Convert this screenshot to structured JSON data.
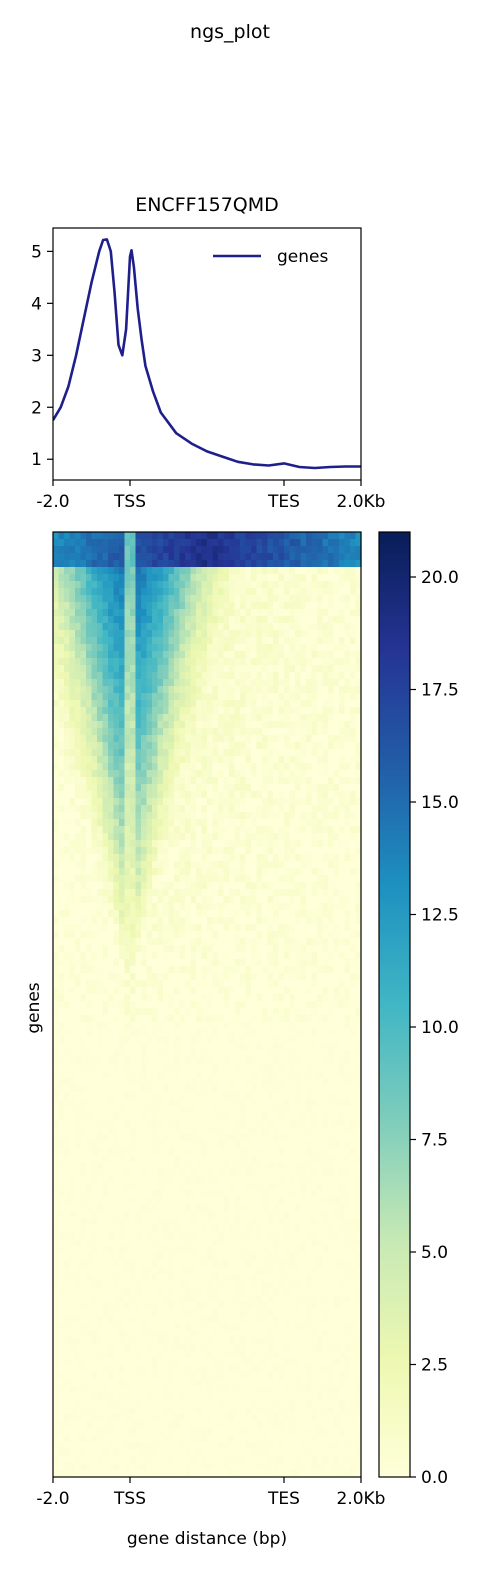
{
  "figure": {
    "suptitle": "ngs_plot"
  },
  "colors": {
    "line": "#1f1f8c",
    "axis": "#000000",
    "cmap": [
      "#ffffd9",
      "#edf8b1",
      "#c7e9b4",
      "#7fcdbb",
      "#41b6c4",
      "#1d91c0",
      "#225ea8",
      "#253494",
      "#081d58"
    ]
  },
  "chart_data": [
    {
      "type": "line",
      "title": "ENCFF157QMD",
      "x_tick_labels": [
        "-2.0",
        "TSS",
        "TES",
        "2.0Kb"
      ],
      "x_tick_positions": [
        0,
        1,
        3,
        4
      ],
      "xlim": [
        0,
        4
      ],
      "ylim": [
        0.6,
        5.45
      ],
      "y_ticks": [
        1,
        2,
        3,
        4,
        5
      ],
      "legend": "top-right",
      "grid": false,
      "series": [
        {
          "name": "genes",
          "x": [
            0,
            0.1,
            0.2,
            0.3,
            0.4,
            0.5,
            0.6,
            0.65,
            0.7,
            0.75,
            0.8,
            0.85,
            0.9,
            0.95,
            1.0,
            1.02,
            1.05,
            1.1,
            1.15,
            1.2,
            1.3,
            1.4,
            1.5,
            1.6,
            1.8,
            2.0,
            2.2,
            2.4,
            2.6,
            2.8,
            3.0,
            3.2,
            3.4,
            3.6,
            3.8,
            4.0
          ],
          "y": [
            1.75,
            2.0,
            2.4,
            3.0,
            3.7,
            4.4,
            5.0,
            5.22,
            5.23,
            5.0,
            4.2,
            3.2,
            3.0,
            3.5,
            4.9,
            5.02,
            4.7,
            3.9,
            3.3,
            2.8,
            2.3,
            1.9,
            1.7,
            1.5,
            1.3,
            1.15,
            1.05,
            0.95,
            0.9,
            0.88,
            0.92,
            0.85,
            0.83,
            0.85,
            0.86,
            0.86
          ]
        }
      ]
    },
    {
      "type": "heatmap",
      "ylabel": "genes",
      "xlabel": "gene distance (bp)",
      "x_tick_labels": [
        "-2.0",
        "TSS",
        "TES",
        "2.0Kb"
      ],
      "x_tick_positions": [
        0,
        1,
        3,
        4
      ],
      "colorbar": {
        "min": 0,
        "max": 21,
        "ticks": [
          "0.0",
          "2.5",
          "5.0",
          "7.5",
          "10.0",
          "12.5",
          "15.0",
          "17.5",
          "20.0"
        ],
        "tick_values": [
          0,
          2.5,
          5,
          7.5,
          10,
          12.5,
          15,
          17.5,
          20
        ]
      }
    }
  ]
}
